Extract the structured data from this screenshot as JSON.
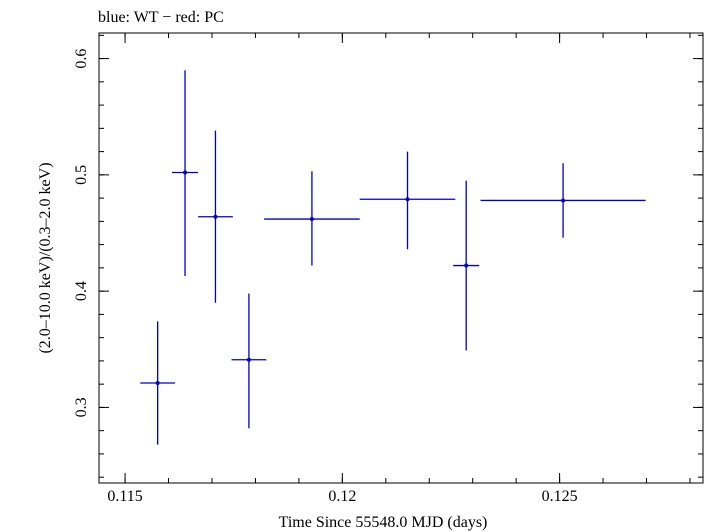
{
  "chart_data": {
    "type": "scatter",
    "title": "blue: WT − red: PC",
    "xlabel": "Time Since 55548.0 MJD (days)",
    "ylabel": "(2.0–10.0 keV)/(0.3–2.0 keV)",
    "xlim": [
      0.1144,
      0.1283
    ],
    "ylim": [
      0.235,
      0.622
    ],
    "xticks": [
      0.115,
      0.12,
      0.125
    ],
    "xtick_labels": [
      "0.115",
      "0.12",
      "0.125"
    ],
    "yticks": [
      0.3,
      0.4,
      0.5,
      0.6
    ],
    "ytick_labels": [
      "0.3",
      "0.4",
      "0.5",
      "0.6"
    ],
    "grid": false,
    "series": [
      {
        "color": "#0000cc",
        "points": [
          {
            "x": 0.11575,
            "y": 0.321,
            "xerr": 0.0004,
            "yerr_low": 0.053,
            "yerr_high": 0.053
          },
          {
            "x": 0.11638,
            "y": 0.502,
            "xerr": 0.0003,
            "yerr_low": 0.089,
            "yerr_high": 0.088
          },
          {
            "x": 0.11708,
            "y": 0.464,
            "xerr": 0.0004,
            "yerr_low": 0.074,
            "yerr_high": 0.074
          },
          {
            "x": 0.11785,
            "y": 0.341,
            "xerr": 0.0004,
            "yerr_low": 0.059,
            "yerr_high": 0.057
          },
          {
            "x": 0.1193,
            "y": 0.462,
            "xerr": 0.0011,
            "yerr_low": 0.04,
            "yerr_high": 0.041
          },
          {
            "x": 0.1215,
            "y": 0.479,
            "xerr": 0.0011,
            "yerr_low": 0.043,
            "yerr_high": 0.041
          },
          {
            "x": 0.12285,
            "y": 0.422,
            "xerr": 0.0003,
            "yerr_low": 0.073,
            "yerr_high": 0.073
          },
          {
            "x": 0.12508,
            "y": 0.478,
            "xerr": 0.0019,
            "yerr_low": 0.032,
            "yerr_high": 0.032
          }
        ]
      }
    ]
  }
}
